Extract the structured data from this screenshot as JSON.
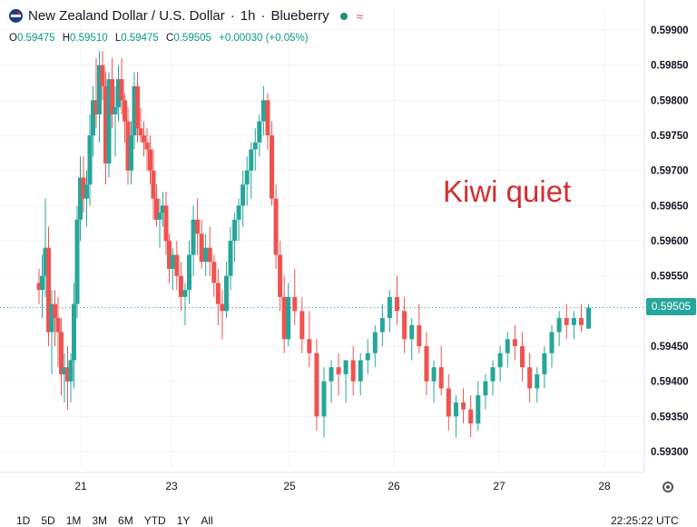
{
  "header": {
    "symbol": "New Zealand Dollar / U.S. Dollar",
    "interval": "1h",
    "provider": "Blueberry",
    "ohlc": {
      "o_label": "O",
      "o": "0.59475",
      "h_label": "H",
      "h": "0.59510",
      "l_label": "L",
      "l": "0.59475",
      "c_label": "C",
      "c": "0.59505",
      "change": "+0.00030 (+0.05%)"
    }
  },
  "annotation": "Kiwi quiet",
  "last_price": "0.59505",
  "time_ranges": [
    "1D",
    "5D",
    "1M",
    "3M",
    "6M",
    "YTD",
    "1Y",
    "All"
  ],
  "clock": "22:25:22 UTC",
  "colors": {
    "up": "#26a69a",
    "down": "#ef5350",
    "grid": "#f0f3fa",
    "annotation": "#d32f2f"
  },
  "chart_data": {
    "type": "candlestick",
    "x_tick_labels": [
      "21",
      "23",
      "25",
      "26",
      "27",
      "28"
    ],
    "x_tick_positions": [
      21,
      23,
      25,
      26,
      27,
      28
    ],
    "y_tick_labels": [
      "0.59900",
      "0.59850",
      "0.59800",
      "0.59750",
      "0.59700",
      "0.59650",
      "0.59600",
      "0.59550",
      "0.59450",
      "0.59400",
      "0.59350",
      "0.59300"
    ],
    "ylim": [
      0.5928,
      0.5992
    ],
    "xlim": [
      20.05,
      28.6
    ],
    "last_value": 0.59505,
    "ohlc": [
      [
        20.08,
        0.5954,
        0.5956,
        0.5951,
        0.5953
      ],
      [
        20.15,
        0.5953,
        0.5958,
        0.5949,
        0.5955
      ],
      [
        20.22,
        0.5955,
        0.5966,
        0.5952,
        0.5959
      ],
      [
        20.29,
        0.5959,
        0.5962,
        0.5945,
        0.5947
      ],
      [
        20.36,
        0.5947,
        0.5953,
        0.5941,
        0.5951
      ],
      [
        20.43,
        0.5951,
        0.5953,
        0.5945,
        0.5949
      ],
      [
        20.5,
        0.5949,
        0.5952,
        0.5942,
        0.5947
      ],
      [
        20.57,
        0.5947,
        0.5949,
        0.5938,
        0.5941
      ],
      [
        20.64,
        0.5941,
        0.5944,
        0.5937,
        0.5942
      ],
      [
        20.71,
        0.5942,
        0.5945,
        0.5936,
        0.594
      ],
      [
        20.78,
        0.594,
        0.5944,
        0.5937,
        0.5943
      ],
      [
        20.85,
        0.5943,
        0.5954,
        0.5939,
        0.5951
      ],
      [
        20.92,
        0.5951,
        0.5965,
        0.5949,
        0.5963
      ],
      [
        20.99,
        0.5963,
        0.5972,
        0.596,
        0.5969
      ],
      [
        21.06,
        0.5969,
        0.5972,
        0.5964,
        0.5966
      ],
      [
        21.13,
        0.5966,
        0.597,
        0.5962,
        0.5968
      ],
      [
        21.2,
        0.5968,
        0.5978,
        0.5965,
        0.5975
      ],
      [
        21.27,
        0.5975,
        0.5982,
        0.5972,
        0.598
      ],
      [
        21.34,
        0.598,
        0.5986,
        0.5976,
        0.5978
      ],
      [
        21.41,
        0.5978,
        0.5987,
        0.5974,
        0.5985
      ],
      [
        21.48,
        0.5985,
        0.5987,
        0.598,
        0.5982
      ],
      [
        21.55,
        0.5982,
        0.5984,
        0.5968,
        0.5971
      ],
      [
        21.62,
        0.5971,
        0.5984,
        0.5969,
        0.5983
      ],
      [
        21.69,
        0.5983,
        0.5986,
        0.5976,
        0.5978
      ],
      [
        21.76,
        0.5978,
        0.5982,
        0.5972,
        0.5979
      ],
      [
        21.83,
        0.5979,
        0.5985,
        0.5977,
        0.5983
      ],
      [
        21.9,
        0.5983,
        0.5986,
        0.5978,
        0.598
      ],
      [
        21.97,
        0.598,
        0.5981,
        0.5974,
        0.5977
      ],
      [
        22.04,
        0.5977,
        0.5979,
        0.5968,
        0.597
      ],
      [
        22.11,
        0.597,
        0.5977,
        0.5968,
        0.5975
      ],
      [
        22.18,
        0.5975,
        0.5984,
        0.5973,
        0.5982
      ],
      [
        22.25,
        0.5982,
        0.5984,
        0.5974,
        0.5976
      ],
      [
        22.32,
        0.5976,
        0.5979,
        0.5974,
        0.5975
      ],
      [
        22.39,
        0.5975,
        0.5977,
        0.5972,
        0.5974
      ],
      [
        22.46,
        0.5974,
        0.5976,
        0.597,
        0.5973
      ],
      [
        22.53,
        0.5973,
        0.5975,
        0.5968,
        0.597
      ],
      [
        22.6,
        0.597,
        0.5973,
        0.5963,
        0.5966
      ],
      [
        22.67,
        0.5966,
        0.5968,
        0.5962,
        0.5963
      ],
      [
        22.74,
        0.5963,
        0.5966,
        0.5959,
        0.5964
      ],
      [
        22.81,
        0.5964,
        0.5967,
        0.5962,
        0.5965
      ],
      [
        22.88,
        0.5965,
        0.5967,
        0.5958,
        0.596
      ],
      [
        22.95,
        0.596,
        0.5961,
        0.5954,
        0.5956
      ],
      [
        23.02,
        0.5956,
        0.5959,
        0.5953,
        0.5958
      ],
      [
        23.09,
        0.5958,
        0.596,
        0.5953,
        0.5955
      ],
      [
        23.16,
        0.5955,
        0.5957,
        0.595,
        0.5952
      ],
      [
        23.23,
        0.5952,
        0.5954,
        0.5948,
        0.5953
      ],
      [
        23.3,
        0.5953,
        0.596,
        0.5951,
        0.5958
      ],
      [
        23.37,
        0.5958,
        0.5965,
        0.5955,
        0.5963
      ],
      [
        23.44,
        0.5963,
        0.5966,
        0.5958,
        0.5961
      ],
      [
        23.51,
        0.5961,
        0.5963,
        0.5956,
        0.5957
      ],
      [
        23.58,
        0.5957,
        0.5961,
        0.5955,
        0.5959
      ],
      [
        23.65,
        0.5959,
        0.5962,
        0.5955,
        0.5957
      ],
      [
        23.72,
        0.5957,
        0.5958,
        0.5952,
        0.5954
      ],
      [
        23.79,
        0.5954,
        0.5956,
        0.5948,
        0.5951
      ],
      [
        23.86,
        0.5951,
        0.5953,
        0.5946,
        0.595
      ],
      [
        23.93,
        0.595,
        0.5957,
        0.5949,
        0.5955
      ],
      [
        24.0,
        0.5955,
        0.5962,
        0.5953,
        0.596
      ],
      [
        24.07,
        0.596,
        0.5964,
        0.5957,
        0.5963
      ],
      [
        24.14,
        0.5963,
        0.5966,
        0.596,
        0.5965
      ],
      [
        24.21,
        0.5965,
        0.597,
        0.5962,
        0.5968
      ],
      [
        24.28,
        0.5968,
        0.5972,
        0.5965,
        0.597
      ],
      [
        24.35,
        0.597,
        0.5974,
        0.5966,
        0.5973
      ],
      [
        24.42,
        0.5973,
        0.5976,
        0.597,
        0.5974
      ],
      [
        24.49,
        0.5974,
        0.5978,
        0.5972,
        0.5977
      ],
      [
        24.56,
        0.5977,
        0.5982,
        0.5975,
        0.598
      ],
      [
        24.63,
        0.598,
        0.5981,
        0.5973,
        0.5975
      ],
      [
        24.7,
        0.5975,
        0.5977,
        0.5965,
        0.5966
      ],
      [
        24.77,
        0.5966,
        0.5968,
        0.5956,
        0.5958
      ],
      [
        24.84,
        0.5958,
        0.596,
        0.595,
        0.5952
      ],
      [
        24.91,
        0.5952,
        0.5955,
        0.5944,
        0.5946
      ],
      [
        24.98,
        0.5946,
        0.5954,
        0.5945,
        0.5952
      ],
      [
        25.05,
        0.5952,
        0.5956,
        0.5948,
        0.595
      ],
      [
        25.12,
        0.595,
        0.5952,
        0.5944,
        0.5946
      ],
      [
        25.19,
        0.5946,
        0.595,
        0.5942,
        0.5944
      ],
      [
        25.26,
        0.5944,
        0.5946,
        0.5933,
        0.5935
      ],
      [
        25.33,
        0.5935,
        0.5942,
        0.5932,
        0.594
      ],
      [
        25.4,
        0.594,
        0.5943,
        0.5937,
        0.5942
      ],
      [
        25.47,
        0.5942,
        0.5944,
        0.5938,
        0.5941
      ],
      [
        25.54,
        0.5941,
        0.5943,
        0.5937,
        0.5943
      ],
      [
        25.61,
        0.5943,
        0.5945,
        0.5938,
        0.594
      ],
      [
        25.68,
        0.594,
        0.5944,
        0.5938,
        0.5943
      ],
      [
        25.75,
        0.5943,
        0.5946,
        0.5941,
        0.5944
      ],
      [
        25.82,
        0.5944,
        0.5948,
        0.5942,
        0.5947
      ],
      [
        25.89,
        0.5947,
        0.5951,
        0.5945,
        0.5949
      ],
      [
        25.96,
        0.5949,
        0.5953,
        0.5947,
        0.5952
      ],
      [
        26.03,
        0.5952,
        0.5955,
        0.5948,
        0.595
      ],
      [
        26.1,
        0.595,
        0.5952,
        0.5944,
        0.5946
      ],
      [
        26.17,
        0.5946,
        0.5949,
        0.5943,
        0.5948
      ],
      [
        26.24,
        0.5948,
        0.5951,
        0.5944,
        0.5945
      ],
      [
        26.31,
        0.5945,
        0.5947,
        0.5938,
        0.594
      ],
      [
        26.38,
        0.594,
        0.5943,
        0.5937,
        0.5942
      ],
      [
        26.45,
        0.5942,
        0.5945,
        0.5938,
        0.5939
      ],
      [
        26.52,
        0.5939,
        0.5941,
        0.5933,
        0.5935
      ],
      [
        26.59,
        0.5935,
        0.5938,
        0.5932,
        0.5937
      ],
      [
        26.66,
        0.5937,
        0.5939,
        0.5934,
        0.5936
      ],
      [
        26.73,
        0.5936,
        0.5938,
        0.5932,
        0.5934
      ],
      [
        26.8,
        0.5934,
        0.594,
        0.5933,
        0.5938
      ],
      [
        26.87,
        0.5938,
        0.5941,
        0.5936,
        0.594
      ],
      [
        26.94,
        0.594,
        0.5943,
        0.5938,
        0.5942
      ],
      [
        27.01,
        0.5942,
        0.5945,
        0.594,
        0.5944
      ],
      [
        27.08,
        0.5944,
        0.5947,
        0.5942,
        0.5946
      ],
      [
        27.15,
        0.5946,
        0.5948,
        0.5943,
        0.5945
      ],
      [
        27.22,
        0.5945,
        0.5947,
        0.594,
        0.5942
      ],
      [
        27.29,
        0.5942,
        0.5944,
        0.5937,
        0.5939
      ],
      [
        27.36,
        0.5939,
        0.5942,
        0.5937,
        0.5941
      ],
      [
        27.43,
        0.5941,
        0.5945,
        0.5939,
        0.5944
      ],
      [
        27.5,
        0.5944,
        0.5948,
        0.5942,
        0.5947
      ],
      [
        27.57,
        0.5947,
        0.595,
        0.5945,
        0.5949
      ],
      [
        27.64,
        0.5949,
        0.5951,
        0.5946,
        0.5948
      ],
      [
        27.71,
        0.5948,
        0.595,
        0.5946,
        0.5949
      ],
      [
        27.78,
        0.5949,
        0.5951,
        0.5947,
        0.5948
      ],
      [
        27.85,
        0.59475,
        0.5951,
        0.59475,
        0.59505
      ]
    ]
  }
}
